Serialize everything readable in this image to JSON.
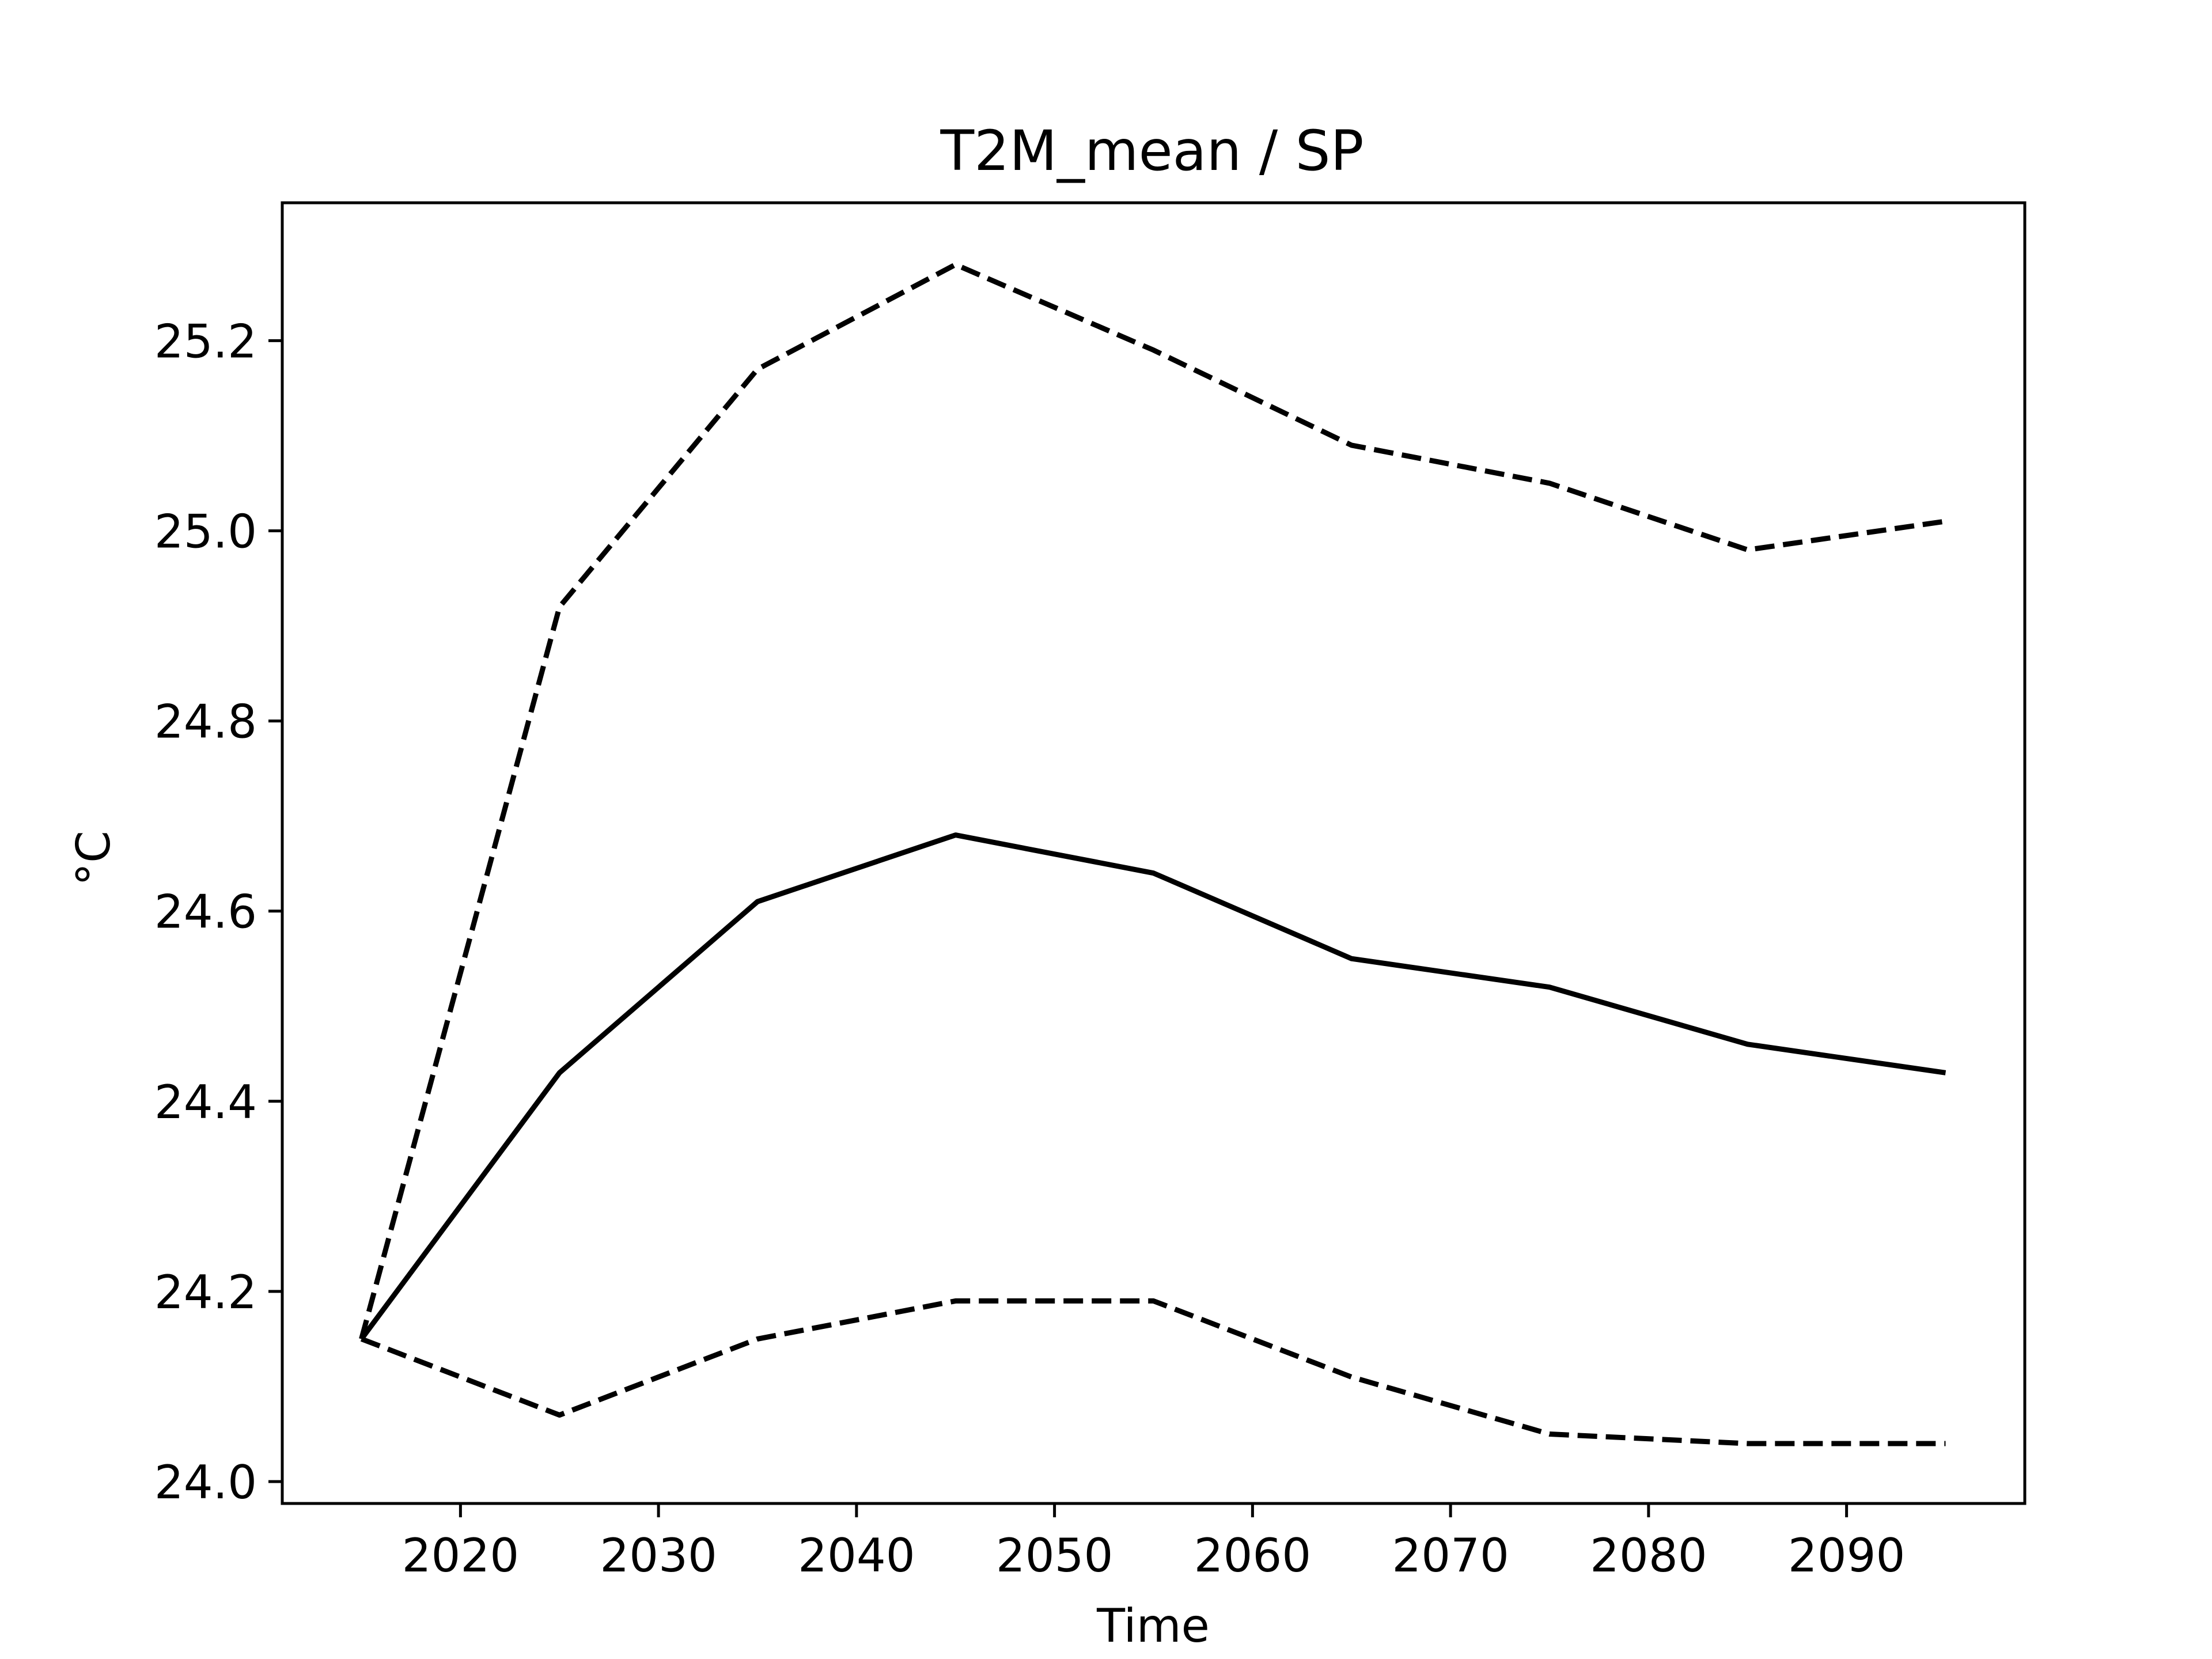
{
  "chart_data": {
    "type": "line",
    "title": "T2M_mean / SP",
    "xlabel": "Time",
    "ylabel": "°C",
    "x": [
      2015,
      2025,
      2035,
      2045,
      2055,
      2065,
      2075,
      2085,
      2095
    ],
    "xlim": [
      2011,
      2099
    ],
    "ylim": [
      23.977,
      25.345
    ],
    "xticks": [
      2020,
      2030,
      2040,
      2050,
      2060,
      2070,
      2080,
      2090
    ],
    "yticks": [
      24.0,
      24.2,
      24.4,
      24.6,
      24.8,
      25.0,
      25.2
    ],
    "grid": false,
    "legend": "none",
    "series": [
      {
        "style": "solid",
        "color": "#000000",
        "values": [
          24.15,
          24.43,
          24.61,
          24.68,
          24.64,
          24.55,
          24.52,
          24.46,
          24.43
        ]
      },
      {
        "style": "dashed",
        "color": "#000000",
        "values": [
          24.15,
          24.92,
          25.17,
          25.28,
          25.19,
          25.09,
          25.05,
          24.98,
          25.01
        ]
      },
      {
        "style": "dashed",
        "color": "#000000",
        "values": [
          24.15,
          24.07,
          24.15,
          24.19,
          24.19,
          24.11,
          24.05,
          24.04,
          24.04
        ]
      }
    ]
  }
}
